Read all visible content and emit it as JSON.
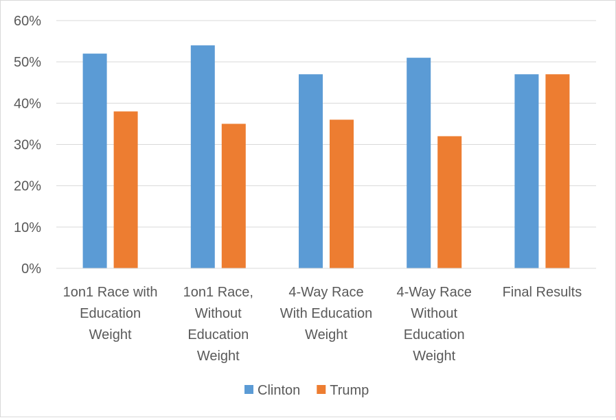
{
  "chart_data": {
    "type": "bar",
    "categories": [
      [
        "1on1 Race with",
        "Education",
        "Weight"
      ],
      [
        "1on1 Race,",
        "Without",
        "Education",
        "Weight"
      ],
      [
        "4-Way Race",
        "With Education",
        "Weight"
      ],
      [
        "4-Way Race",
        "Without",
        "Education",
        "Weight"
      ],
      [
        "Final Results"
      ]
    ],
    "series": [
      {
        "name": "Clinton",
        "color": "#5b9bd5",
        "values": [
          52,
          54,
          47,
          51,
          47
        ]
      },
      {
        "name": "Trump",
        "color": "#ed7d31",
        "values": [
          38,
          35,
          36,
          32,
          47
        ]
      }
    ],
    "ylim": [
      0,
      60
    ],
    "yticks": [
      "0%",
      "10%",
      "20%",
      "30%",
      "40%",
      "50%",
      "60%"
    ],
    "grid": true,
    "legend": "bottom"
  }
}
